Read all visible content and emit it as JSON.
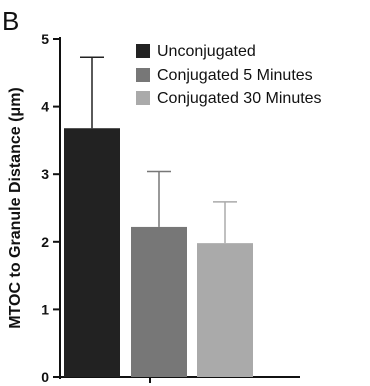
{
  "panel_label": "B",
  "chart_data": {
    "type": "bar",
    "categories": [
      "Unconjugated",
      "Conjugated 5 Minutes",
      "Conjugated 30 Minutes"
    ],
    "values": [
      3.68,
      2.22,
      1.98
    ],
    "error_upper": [
      4.73,
      3.04,
      2.59
    ],
    "colors": [
      "#222222",
      "#777777",
      "#aaaaaa"
    ],
    "title": "",
    "xlabel": "",
    "ylabel": "MTOC to Granule Distance (μm)",
    "ylim": [
      0,
      5
    ],
    "yticks": [
      "0",
      "1",
      "2",
      "3",
      "4",
      "5"
    ],
    "legend": [
      "Unconjugated",
      "Conjugated 5 Minutes",
      "Conjugated 30 Minutes"
    ],
    "legend_position": "top-right",
    "grid": false
  }
}
